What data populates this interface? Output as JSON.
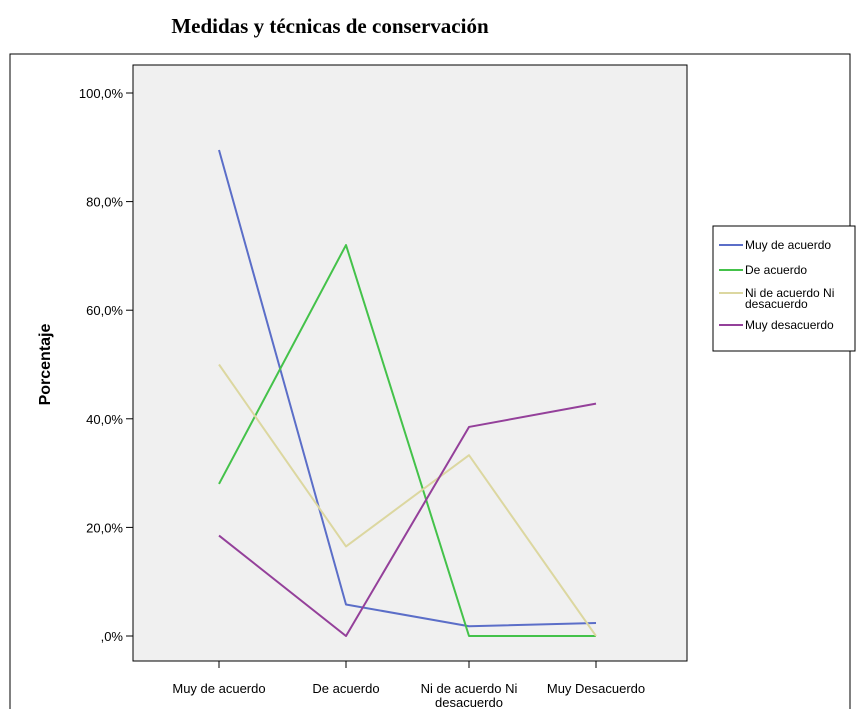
{
  "chart_data": {
    "type": "line",
    "title": "Medidas y técnicas de conservación",
    "xlabel": "",
    "ylabel": "Porcentaje",
    "categories": [
      [
        "Muy de acuerdo"
      ],
      [
        "De acuerdo"
      ],
      [
        "Ni de acuerdo Ni",
        "desacuerdo"
      ],
      [
        "Muy Desacuerdo"
      ]
    ],
    "ylim": [
      0,
      100
    ],
    "yticks": [
      {
        "value": 0,
        "label": ",0%"
      },
      {
        "value": 20,
        "label": "20,0%"
      },
      {
        "value": 40,
        "label": "40,0%"
      },
      {
        "value": 60,
        "label": "60,0%"
      },
      {
        "value": 80,
        "label": "80,0%"
      },
      {
        "value": 100,
        "label": "100,0%"
      }
    ],
    "grid": false,
    "legend_position": "right",
    "series": [
      {
        "name": [
          "Muy de acuerdo"
        ],
        "color": "#5b6ec8",
        "values": [
          89.5,
          5.8,
          1.8,
          2.4
        ]
      },
      {
        "name": [
          "De acuerdo"
        ],
        "color": "#44c24a",
        "values": [
          28.0,
          72.0,
          0.0,
          0.0
        ]
      },
      {
        "name": [
          "Ni de acuerdo Ni",
          "desacuerdo"
        ],
        "color": "#dcd7a0",
        "values": [
          50.0,
          16.5,
          33.3,
          0.0
        ]
      },
      {
        "name": [
          "Muy desacuerdo"
        ],
        "color": "#94409a",
        "values": [
          18.5,
          0.0,
          38.5,
          42.8
        ]
      }
    ]
  }
}
